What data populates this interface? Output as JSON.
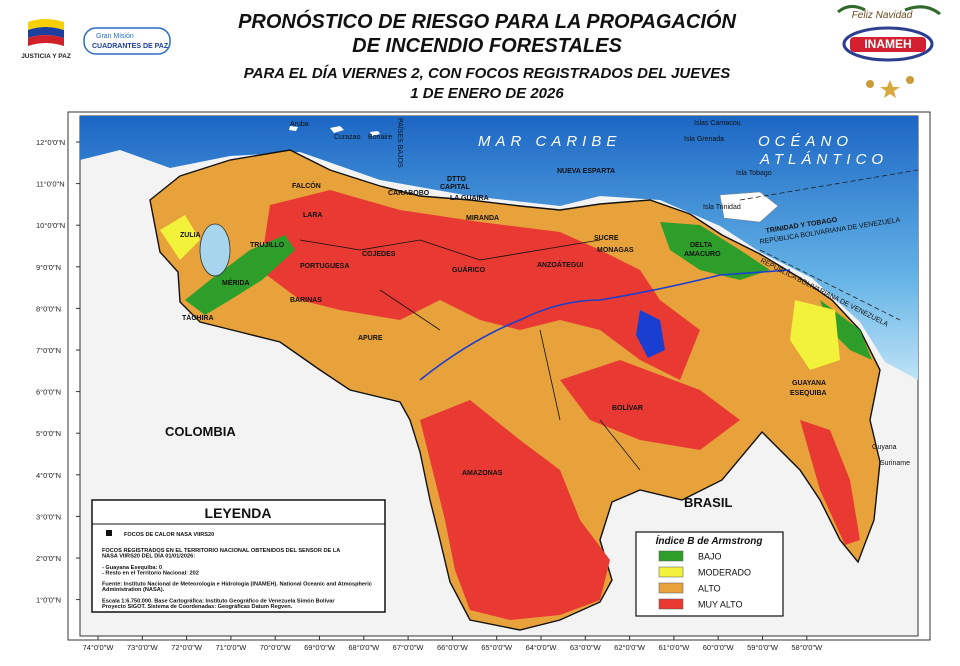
{
  "header": {
    "title_lines": [
      "PRONÓSTICO DE RIESGO PARA LA PROPAGACIÓN",
      "DE INCENDIO FORESTALES"
    ],
    "subtitle_lines": [
      "PARA EL DÍA VIERNES 2, CON FOCOS REGISTRADOS DEL JUEVES",
      "1 DE ENERO DE 2026"
    ],
    "left_logos": [
      "JUSTICIA Y PAZ",
      "Gran Misión",
      "CUADRANTES DE PAZ"
    ],
    "right_logos": [
      "Feliz Navidad",
      "INAMEH"
    ]
  },
  "map": {
    "lat_labels": [
      "12°0'0\"N",
      "11°0'0\"N",
      "10°0'0\"N",
      "9°0'0\"N",
      "8°0'0\"N",
      "7°0'0\"N",
      "6°0'0\"N",
      "5°0'0\"N",
      "4°0'0\"N",
      "3°0'0\"N",
      "2°0'0\"N",
      "1°0'0\"N"
    ],
    "lon_labels": [
      "74°0'0\"W",
      "73°0'0\"W",
      "72°0'0\"W",
      "71°0'0\"W",
      "70°0'0\"W",
      "69°0'0\"W",
      "68°0'0\"W",
      "67°0'0\"W",
      "66°0'0\"W",
      "65°0'0\"W",
      "64°0'0\"W",
      "63°0'0\"W",
      "62°0'0\"W",
      "61°0'0\"W",
      "60°0'0\"W",
      "59°0'0\"W",
      "58°0'0\"W"
    ],
    "states": [
      "ZULIA",
      "FALCÓN",
      "LARA",
      "TRUJILLO",
      "PORTUGUESA",
      "COJEDES",
      "CARABOBO",
      "DTTO",
      "CAPITAL",
      "LA GUAIRA",
      "MIRANDA",
      "GUÁRICO",
      "ANZOÁTEGUI",
      "SUCRE",
      "MONAGAS",
      "DELTA",
      "AMACURO",
      "NUEVA ESPARTA",
      "MÉRIDA",
      "TÁCHIRA",
      "BARINAS",
      "APURE",
      "BOLÍVAR",
      "AMAZONAS",
      "GUAYANA",
      "ESEQUIBA"
    ],
    "countries": [
      "COLOMBIA",
      "BRASIL",
      "Guyana",
      "Suriname"
    ],
    "islands": [
      "Aruba",
      "Curazao",
      "Bonaire",
      "PAÍSES BAJOS",
      "Islas Carriacou",
      "Isla Grenada",
      "Isla Tobago",
      "Isla Trinidad"
    ],
    "seas": [
      "MAR CARIBE",
      "OCÉANO",
      "ATLÁNTICO"
    ],
    "borders": [
      "TRINIDAD Y TOBAGO",
      "REPÚBLICA BOLIVARIANA DE VENEZUELA",
      "REPÚBLICA BOLIVARIANA DE VENEZUELA"
    ]
  },
  "legend": {
    "title": "LEYENDA",
    "symbol_label": "FOCOS DE CALOR NASA VIIRS20",
    "lines": [
      "FOCOS REGISTRADOS EN EL TERRITORIO NACIONAL OBTENIDOS DEL SENSOR DE LA",
      "NASA VIIRS20 DEL DÍA 01/01/2026:",
      "",
      "- Guayana Esequiba: 0",
      "- Resto en el Territorio Nacional: 202",
      "",
      "Fuente: Instituto Nacional de Meteorología e Hidrología (INAMEH). National Oceanic and Atmospheric",
      "Administration (NASA).",
      "",
      "Escala 1:6.750.000. Base Cartográfica: Instituto Geográfico de Venezuela Simón Bolívar",
      "Proyecto SIGOT. Sistema de Coordenadas: Geográficas Datum Regven."
    ]
  },
  "risk_legend": {
    "title": "Índice B de Armstrong",
    "items": [
      {
        "label": "BAJO",
        "color": "#2e9e2a"
      },
      {
        "label": "MODERADO",
        "color": "#f2f23a"
      },
      {
        "label": "ALTO",
        "color": "#e8a23c"
      },
      {
        "label": "MUY ALTO",
        "color": "#e83a32"
      }
    ]
  }
}
